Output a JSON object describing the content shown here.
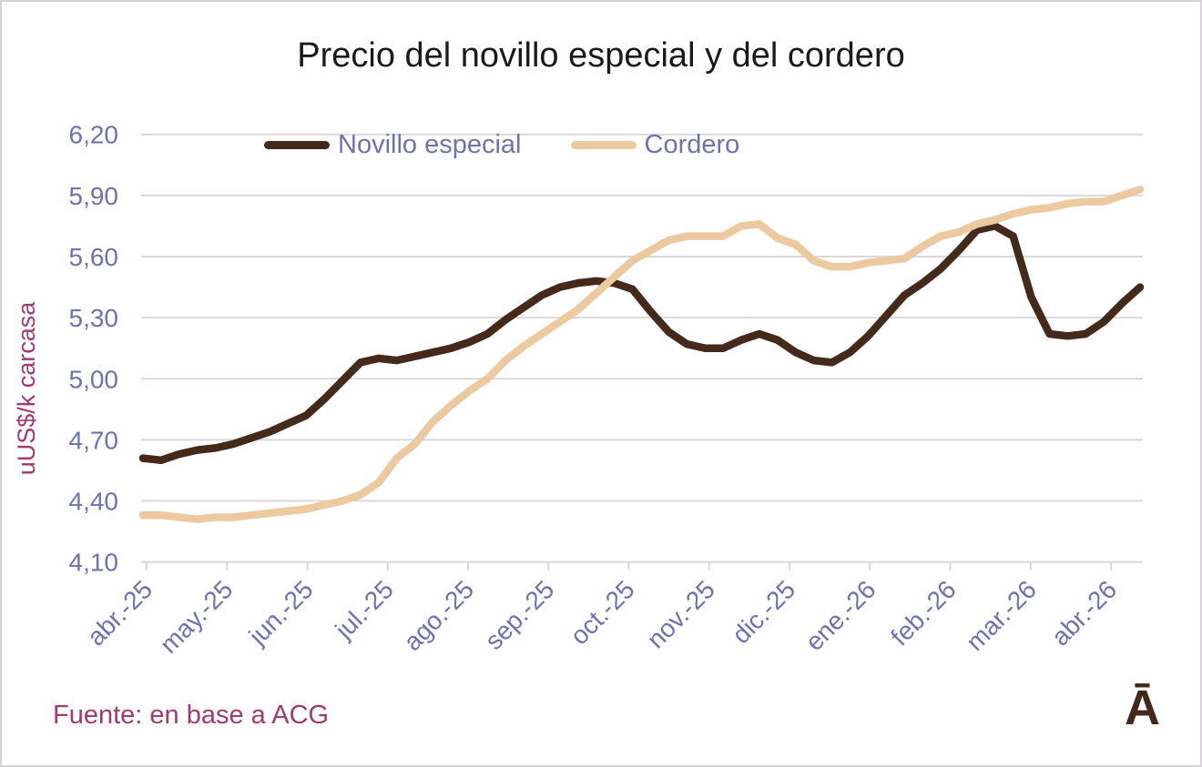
{
  "title": "Precio del novillo especial y del cordero",
  "source_note": "Fuente: en base a ACG",
  "logo_glyph": "Ā",
  "colors": {
    "title": "#1a1a1a",
    "axis_labels": "#6F72AE",
    "y_axis_title": "#A23A6B",
    "source": "#A23A6B",
    "gridline": "#D9D9D9",
    "novillo_line": "#45291A",
    "cordero_line": "#EDC9A0",
    "logo": "#44281A",
    "border": "#D9D2D6"
  },
  "chart_data": {
    "type": "line",
    "title": "Precio del novillo especial y del cordero",
    "xlabel": "",
    "ylabel": "uUS$/k carcasa",
    "ylim": [
      4.1,
      6.2
    ],
    "ytick_step": 0.3,
    "ytick_labels_top_to_bottom": [
      "6,20",
      "5,90",
      "5,60",
      "5,30",
      "5,00",
      "4,70",
      "4,40",
      "4,10"
    ],
    "x_tick_labels": [
      "abr.-25",
      "may.-25",
      "jun.-25",
      "jul.-25",
      "ago.-25",
      "sep.-25",
      "oct.-25",
      "nov.-25",
      "dic.-25",
      "ene.-26",
      "feb.-26",
      "mar.-26",
      "abr.-26"
    ],
    "x_tick_week_positions": [
      0.2,
      4.63,
      9.07,
      13.5,
      17.93,
      22.37,
      26.8,
      31.23,
      35.67,
      40.1,
      44.53,
      48.97,
      53.4
    ],
    "frequency": "weekly",
    "grid": "horizontal",
    "legend_position": "top",
    "series": [
      {
        "name": "Novillo especial",
        "color": "#45291A",
        "values": [
          4.61,
          4.6,
          4.63,
          4.65,
          4.66,
          4.68,
          4.71,
          4.74,
          4.78,
          4.82,
          4.9,
          4.99,
          5.08,
          5.1,
          5.09,
          5.11,
          5.13,
          5.15,
          5.18,
          5.22,
          5.29,
          5.35,
          5.41,
          5.45,
          5.47,
          5.48,
          5.47,
          5.44,
          5.33,
          5.23,
          5.17,
          5.15,
          5.15,
          5.19,
          5.22,
          5.19,
          5.13,
          5.09,
          5.08,
          5.13,
          5.21,
          5.31,
          5.41,
          5.47,
          5.54,
          5.63,
          5.73,
          5.75,
          5.7,
          5.4,
          5.22,
          5.21,
          5.22,
          5.28,
          5.37,
          5.45
        ]
      },
      {
        "name": "Cordero",
        "color": "#EDC9A0",
        "values": [
          4.33,
          4.33,
          4.32,
          4.31,
          4.32,
          4.32,
          4.33,
          4.34,
          4.35,
          4.36,
          4.38,
          4.4,
          4.43,
          4.49,
          4.61,
          4.68,
          4.79,
          4.87,
          4.94,
          5.0,
          5.09,
          5.16,
          5.22,
          5.28,
          5.34,
          5.42,
          5.5,
          5.58,
          5.63,
          5.68,
          5.7,
          5.7,
          5.7,
          5.75,
          5.76,
          5.69,
          5.66,
          5.58,
          5.55,
          5.55,
          5.57,
          5.58,
          5.59,
          5.65,
          5.7,
          5.72,
          5.76,
          5.78,
          5.81,
          5.83,
          5.84,
          5.86,
          5.87,
          5.87,
          5.9,
          5.93
        ]
      }
    ]
  }
}
